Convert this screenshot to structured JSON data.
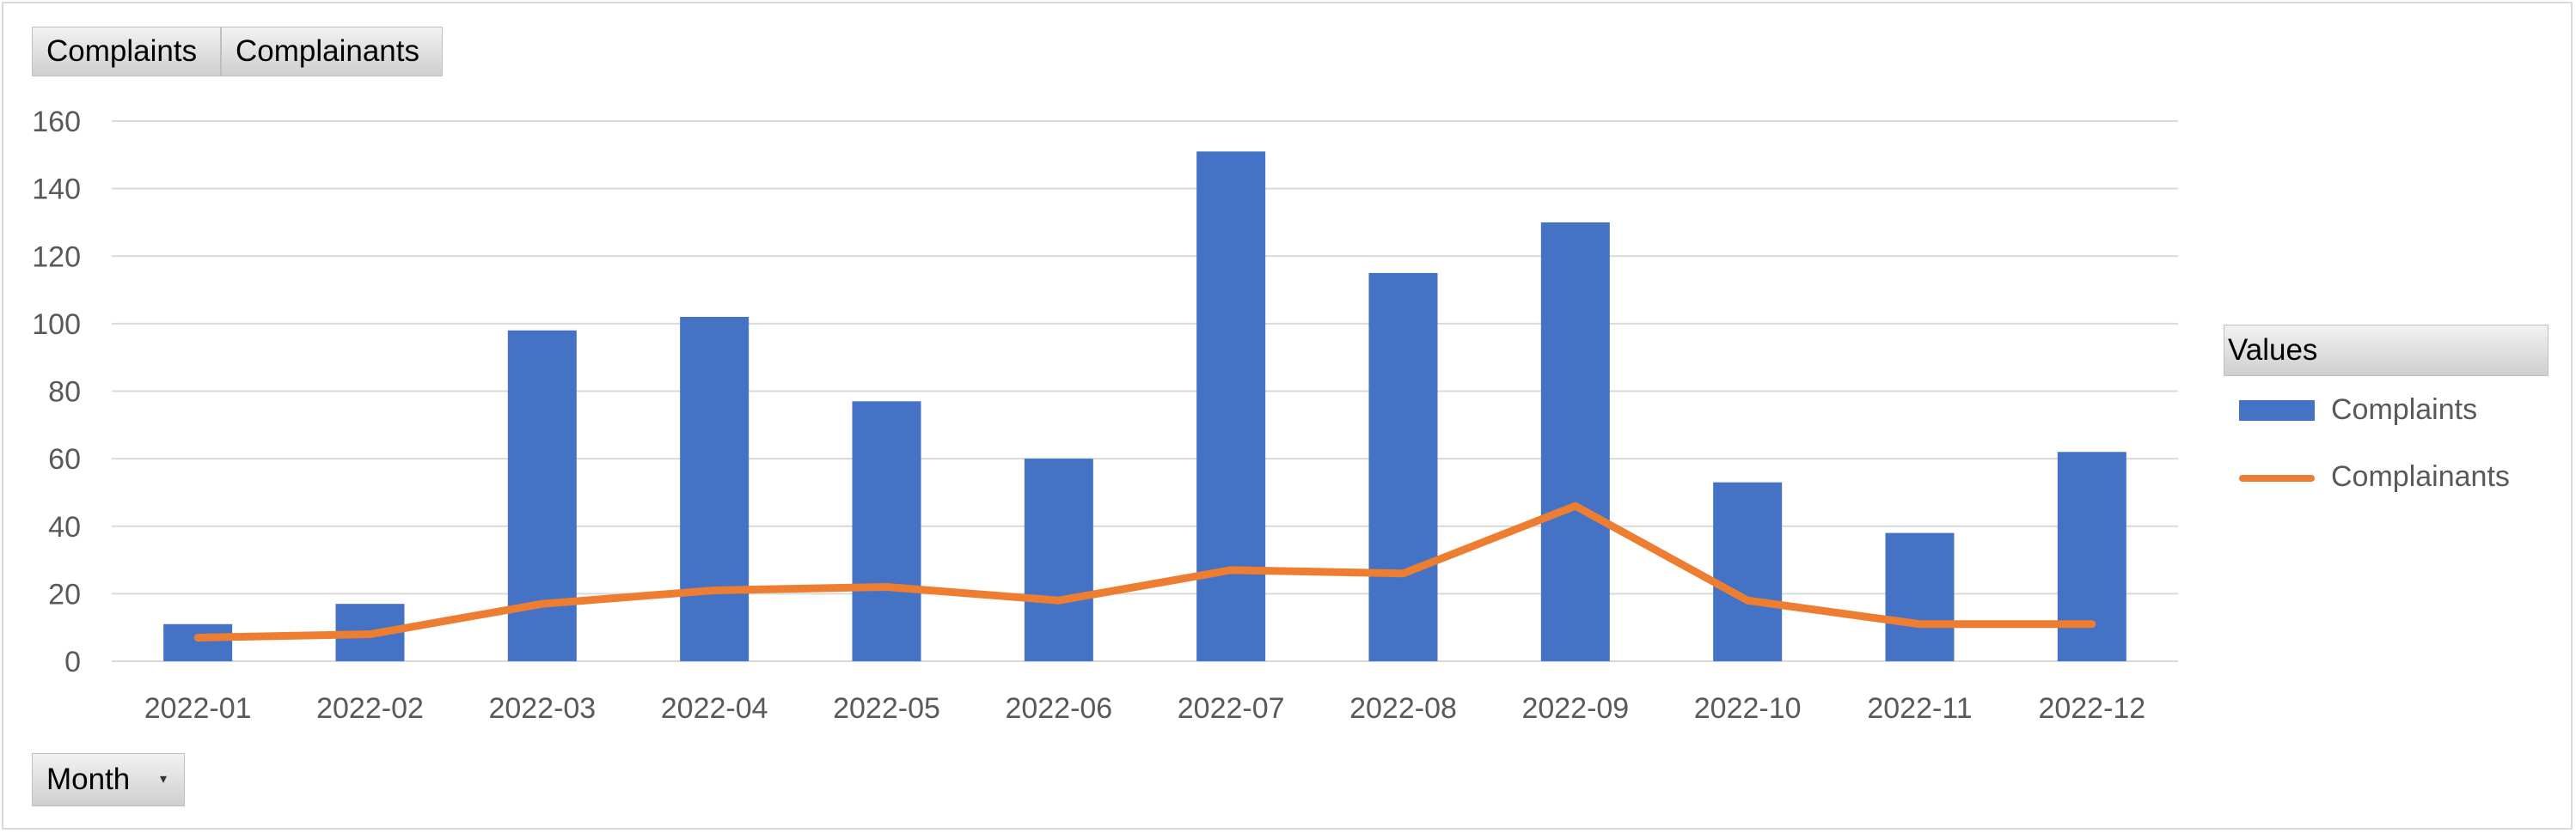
{
  "filter_buttons": {
    "complaints": "Complaints",
    "complainants": "Complainants",
    "month": "Month"
  },
  "legend": {
    "title": "Values",
    "items": [
      {
        "label": "Complaints",
        "kind": "bar",
        "color": "#4472c4"
      },
      {
        "label": "Complainants",
        "kind": "line",
        "color": "#ed7d31"
      }
    ],
    "placement": "right"
  },
  "chart_data": {
    "type": "bar",
    "categories": [
      "2022-01",
      "2022-02",
      "2022-03",
      "2022-04",
      "2022-05",
      "2022-06",
      "2022-07",
      "2022-08",
      "2022-09",
      "2022-10",
      "2022-11",
      "2022-12"
    ],
    "series": [
      {
        "name": "Complaints",
        "type": "bar",
        "color": "#4472c4",
        "values": [
          11,
          17,
          98,
          102,
          77,
          60,
          151,
          115,
          130,
          53,
          38,
          62
        ]
      },
      {
        "name": "Complainants",
        "type": "line",
        "color": "#ed7d31",
        "values": [
          7,
          8,
          17,
          21,
          22,
          18,
          27,
          26,
          46,
          18,
          11,
          11
        ]
      }
    ],
    "ylim": [
      0,
      160
    ],
    "yticks": [
      0,
      20,
      40,
      60,
      80,
      100,
      120,
      140,
      160
    ],
    "grid": true
  }
}
